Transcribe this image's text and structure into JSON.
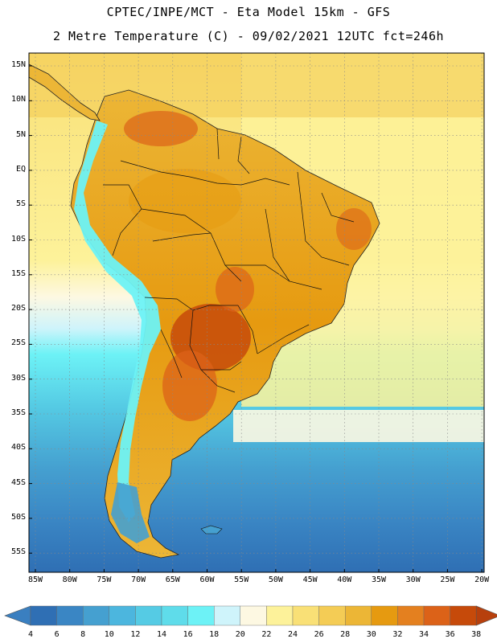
{
  "title_line1": "CPTEC/INPE/MCT -  Eta Model 15km - GFS",
  "title_line2": "2 Metre Temperature (C) - 09/02/2021 12UTC fct=246h",
  "lat_labels": [
    "15N",
    "10N",
    "5N",
    "EQ",
    "5S",
    "10S",
    "15S",
    "20S",
    "25S",
    "30S",
    "35S",
    "40S",
    "45S",
    "50S",
    "55S"
  ],
  "lon_labels": [
    "85W",
    "80W",
    "75W",
    "70W",
    "65W",
    "60W",
    "55W",
    "50W",
    "45W",
    "40W",
    "35W",
    "30W",
    "25W",
    "20W"
  ],
  "colorbar": {
    "levels": [
      "4",
      "6",
      "8",
      "10",
      "12",
      "14",
      "16",
      "18",
      "20",
      "22",
      "24",
      "26",
      "28",
      "30",
      "32",
      "34",
      "36",
      "38"
    ],
    "colors": [
      "#2f6fb4",
      "#3a86c4",
      "#45a0d0",
      "#4cb6de",
      "#55cbe4",
      "#5fdcea",
      "#6df2f6",
      "#cff4fb",
      "#fdf8e2",
      "#fdf29a",
      "#f9e076",
      "#f4cc55",
      "#ecb636",
      "#e69a10",
      "#e4801f",
      "#dc6218",
      "#c64a0a"
    ],
    "left_arrow": "#3a7fc0",
    "right_arrow": "#b7400d"
  },
  "map": {
    "ocean_colors": [
      "#fdf29a",
      "#fdf8e2",
      "#cff4fb",
      "#6df2f6",
      "#55cbe4",
      "#45a0d0",
      "#3a86c4",
      "#2f6fb4"
    ],
    "land_colors": [
      "#f4cc55",
      "#ecb636",
      "#e69a10",
      "#dc6218",
      "#c64a0a",
      "#6df2f6",
      "#45a0d0"
    ]
  }
}
